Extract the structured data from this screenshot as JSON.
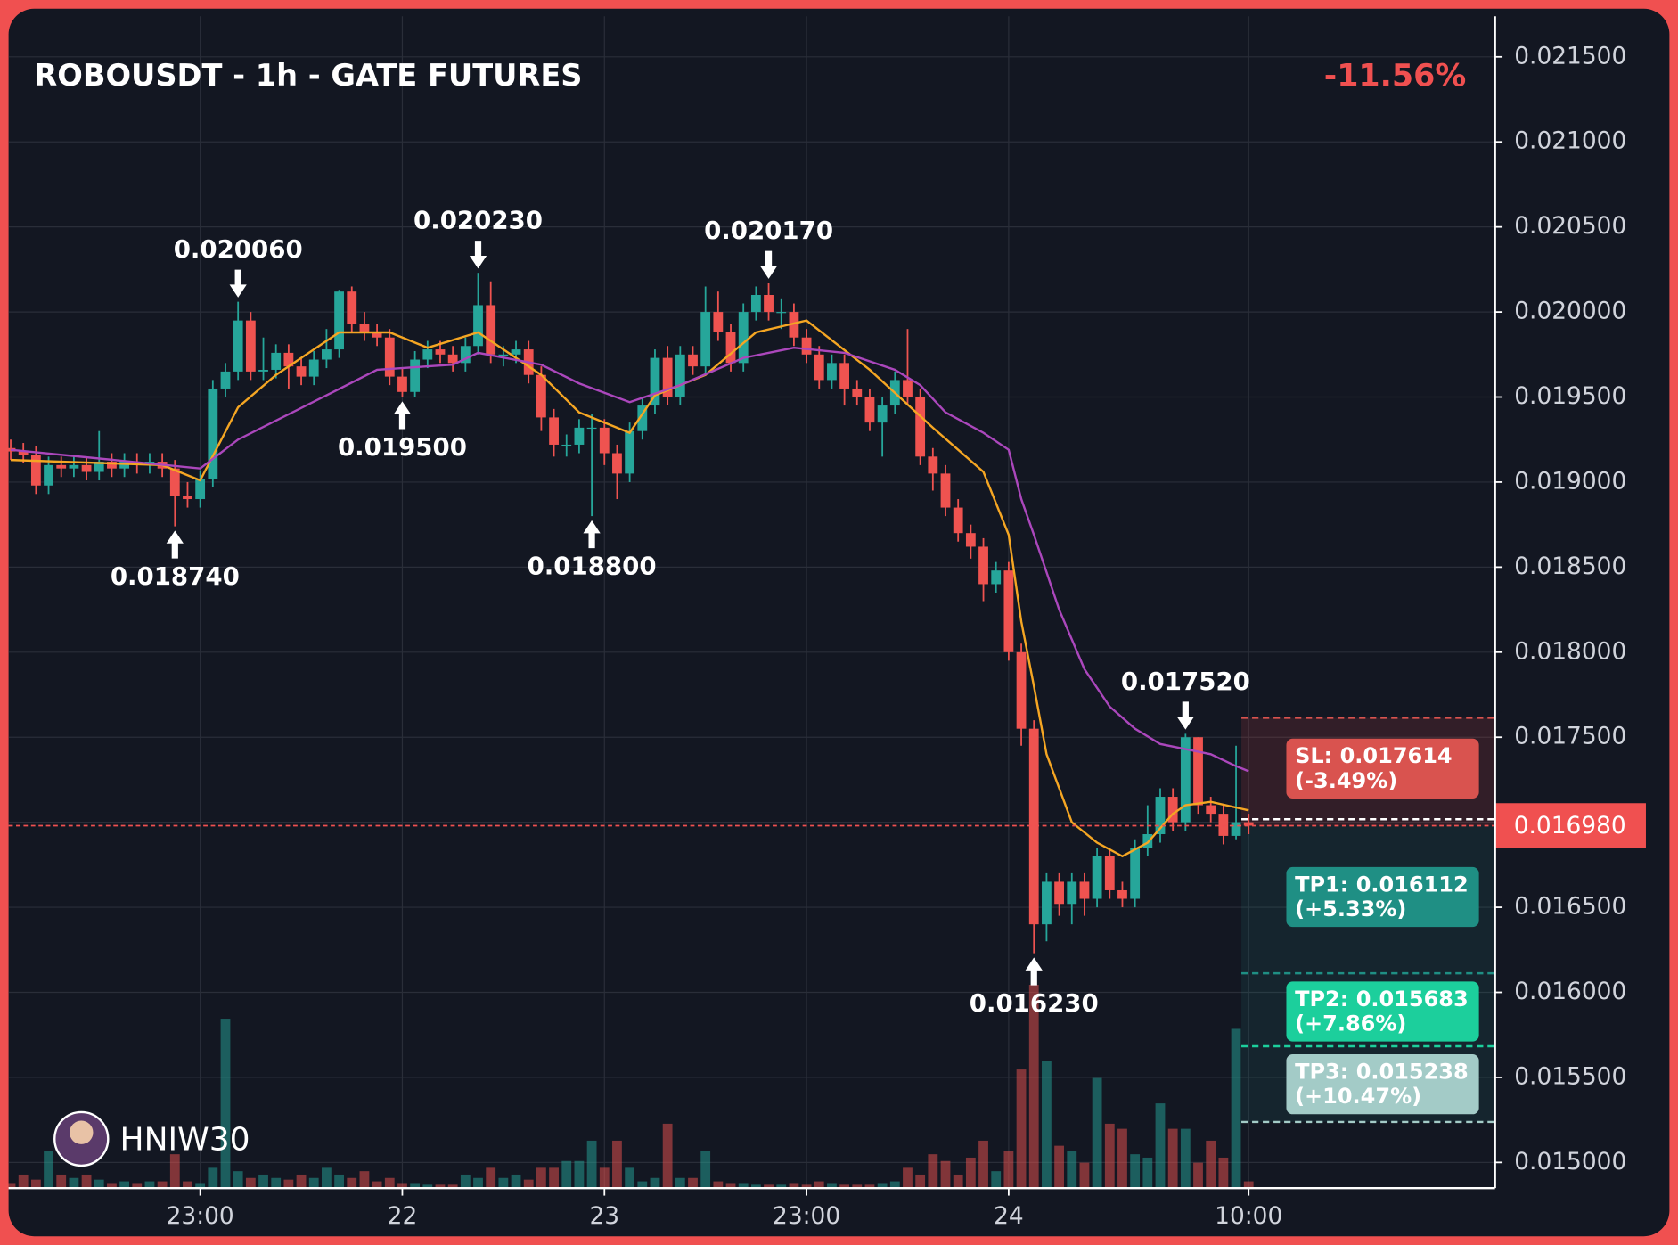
{
  "chart_data": {
    "type": "candlestick",
    "title": "ROBOUSDT - 1h - GATE FUTURES",
    "change": "-11.56%",
    "watermark": "HNIW30",
    "up_color": "#26a69a",
    "down_color": "#ef5350",
    "grid": true,
    "xlim": [
      -0.17,
      117.5
    ],
    "ylim": [
      0.014849,
      0.021739
    ],
    "yticks": [
      {
        "value": 0.0215,
        "label": "0.021500"
      },
      {
        "value": 0.021,
        "label": "0.021000"
      },
      {
        "value": 0.0205,
        "label": "0.020500"
      },
      {
        "value": 0.02,
        "label": "0.020000"
      },
      {
        "value": 0.0195,
        "label": "0.019500"
      },
      {
        "value": 0.019,
        "label": "0.019000"
      },
      {
        "value": 0.0185,
        "label": "0.018500"
      },
      {
        "value": 0.018,
        "label": "0.018000"
      },
      {
        "value": 0.0175,
        "label": "0.017500"
      },
      {
        "value": 0.017,
        "label": "0.017000"
      },
      {
        "value": 0.0165,
        "label": "0.016500"
      },
      {
        "value": 0.016,
        "label": "0.016000"
      },
      {
        "value": 0.0155,
        "label": "0.015500"
      },
      {
        "value": 0.015,
        "label": "0.015000"
      }
    ],
    "xticks": [
      {
        "value": 15,
        "label": "23:00"
      },
      {
        "value": 31,
        "label": "22"
      },
      {
        "value": 47,
        "label": "23"
      },
      {
        "value": 63,
        "label": "23:00"
      },
      {
        "value": 79,
        "label": "24"
      },
      {
        "value": 98,
        "label": "10:00"
      }
    ],
    "open": [
      0.0192,
      0.01918,
      0.01916,
      0.01898,
      0.0191,
      0.01908,
      0.0191,
      0.01906,
      0.01912,
      0.01908,
      0.01912,
      0.0191,
      0.01912,
      0.01908,
      0.01892,
      0.0189,
      0.01902,
      0.01955,
      0.01965,
      0.01995,
      0.01965,
      0.01966,
      0.01976,
      0.01968,
      0.01962,
      0.01972,
      0.01978,
      0.02012,
      0.01993,
      0.01988,
      0.01985,
      0.01962,
      0.01953,
      0.01972,
      0.01978,
      0.01975,
      0.0197,
      0.0198,
      0.02004,
      0.01975,
      0.01975,
      0.01978,
      0.01963,
      0.01938,
      0.01922,
      0.01922,
      0.01932,
      0.01932,
      0.01917,
      0.01905,
      0.0193,
      0.01945,
      0.01973,
      0.0195,
      0.01975,
      0.01968,
      0.02,
      0.01988,
      0.0197,
      0.02,
      0.0201,
      0.02,
      0.02,
      0.01985,
      0.01975,
      0.0196,
      0.0197,
      0.01955,
      0.0195,
      0.01935,
      0.01945,
      0.0196,
      0.0195,
      0.01915,
      0.01905,
      0.01885,
      0.0187,
      0.01862,
      0.0184,
      0.01848,
      0.018,
      0.01755,
      0.0164,
      0.01665,
      0.01652,
      0.01665,
      0.01655,
      0.0168,
      0.0166,
      0.01655,
      0.01685,
      0.01693,
      0.01715,
      0.017,
      0.0175,
      0.0171,
      0.01705,
      0.01692,
      0.017
    ],
    "high": [
      0.01925,
      0.01923,
      0.01921,
      0.01915,
      0.01915,
      0.01915,
      0.01915,
      0.0193,
      0.01917,
      0.01917,
      0.01917,
      0.01917,
      0.01917,
      0.01913,
      0.019,
      0.01907,
      0.0196,
      0.0197,
      0.02006,
      0.02,
      0.01985,
      0.01981,
      0.01981,
      0.01973,
      0.01977,
      0.0199,
      0.02013,
      0.02015,
      0.02,
      0.01993,
      0.0199,
      0.01967,
      0.01977,
      0.01983,
      0.01983,
      0.0198,
      0.01985,
      0.02023,
      0.02018,
      0.0198,
      0.01983,
      0.01983,
      0.01968,
      0.01943,
      0.01928,
      0.01937,
      0.0194,
      0.01937,
      0.01922,
      0.01935,
      0.0195,
      0.01978,
      0.0198,
      0.0198,
      0.0198,
      0.02015,
      0.02012,
      0.01993,
      0.02005,
      0.02015,
      0.02017,
      0.02008,
      0.02005,
      0.0199,
      0.0198,
      0.01975,
      0.01975,
      0.0196,
      0.01955,
      0.0195,
      0.01965,
      0.0199,
      0.01955,
      0.0192,
      0.0191,
      0.0189,
      0.01875,
      0.01867,
      0.01853,
      0.01853,
      0.01805,
      0.0176,
      0.0167,
      0.0167,
      0.0167,
      0.0167,
      0.01685,
      0.01685,
      0.01665,
      0.0169,
      0.0171,
      0.0172,
      0.0172,
      0.01752,
      0.0175,
      0.01715,
      0.0171,
      0.01745,
      0.01705
    ],
    "low": [
      0.01913,
      0.01911,
      0.01893,
      0.01893,
      0.01903,
      0.01903,
      0.01901,
      0.01901,
      0.01903,
      0.01903,
      0.01905,
      0.01905,
      0.01903,
      0.01874,
      0.01885,
      0.01885,
      0.01897,
      0.0195,
      0.0196,
      0.0196,
      0.0196,
      0.01961,
      0.01955,
      0.01957,
      0.01957,
      0.01967,
      0.01973,
      0.01988,
      0.01983,
      0.0198,
      0.01957,
      0.0195,
      0.0195,
      0.01967,
      0.0197,
      0.01965,
      0.01965,
      0.01975,
      0.0197,
      0.01968,
      0.0197,
      0.01958,
      0.0193,
      0.01915,
      0.01915,
      0.01917,
      0.0188,
      0.0191,
      0.0189,
      0.019,
      0.01925,
      0.0194,
      0.01945,
      0.01945,
      0.01963,
      0.01963,
      0.01983,
      0.01965,
      0.01965,
      0.01995,
      0.01995,
      0.0199,
      0.0198,
      0.0197,
      0.01955,
      0.01955,
      0.01945,
      0.01945,
      0.0193,
      0.01915,
      0.0194,
      0.01945,
      0.0191,
      0.01895,
      0.0188,
      0.01865,
      0.01855,
      0.0183,
      0.01835,
      0.01795,
      0.01745,
      0.01623,
      0.0163,
      0.01645,
      0.0164,
      0.01645,
      0.0165,
      0.01655,
      0.0165,
      0.0165,
      0.0168,
      0.01688,
      0.01695,
      0.01695,
      0.01705,
      0.017,
      0.01687,
      0.0169,
      0.01693
    ],
    "close": [
      0.01918,
      0.01916,
      0.01898,
      0.0191,
      0.01908,
      0.0191,
      0.01906,
      0.01912,
      0.01908,
      0.01912,
      0.0191,
      0.01912,
      0.01908,
      0.01892,
      0.0189,
      0.01902,
      0.01955,
      0.01965,
      0.01995,
      0.01965,
      0.01966,
      0.01976,
      0.01968,
      0.01962,
      0.01972,
      0.01978,
      0.02012,
      0.01993,
      0.01988,
      0.01985,
      0.01962,
      0.01953,
      0.01972,
      0.01978,
      0.01975,
      0.0197,
      0.0198,
      0.02004,
      0.01975,
      0.01975,
      0.01978,
      0.01963,
      0.01938,
      0.01922,
      0.01922,
      0.01932,
      0.01932,
      0.01917,
      0.01905,
      0.0193,
      0.01945,
      0.01973,
      0.0195,
      0.01975,
      0.01968,
      0.02,
      0.01988,
      0.0197,
      0.02,
      0.0201,
      0.02,
      0.02,
      0.01985,
      0.01975,
      0.0196,
      0.0197,
      0.01955,
      0.0195,
      0.01935,
      0.01945,
      0.0196,
      0.0195,
      0.01915,
      0.01905,
      0.01885,
      0.0187,
      0.01862,
      0.0184,
      0.01848,
      0.018,
      0.01755,
      0.0164,
      0.01665,
      0.01652,
      0.01665,
      0.01655,
      0.0168,
      0.0166,
      0.01655,
      0.01685,
      0.01693,
      0.01715,
      0.017,
      0.0175,
      0.0171,
      0.01705,
      0.01692,
      0.017,
      0.01698
    ],
    "volume": [
      3,
      8,
      5,
      22,
      8,
      6,
      8,
      5,
      3,
      4,
      3,
      4,
      4,
      20,
      4,
      3,
      12,
      100,
      10,
      6,
      8,
      6,
      5,
      8,
      6,
      12,
      8,
      6,
      10,
      4,
      6,
      3,
      3,
      2,
      2,
      2,
      8,
      6,
      12,
      6,
      8,
      5,
      12,
      12,
      16,
      16,
      28,
      12,
      28,
      12,
      4,
      6,
      38,
      6,
      6,
      22,
      4,
      3,
      3,
      2,
      2,
      2,
      3,
      2,
      4,
      3,
      2,
      2,
      2,
      3,
      4,
      12,
      8,
      20,
      16,
      8,
      18,
      28,
      10,
      22,
      70,
      120,
      75,
      25,
      22,
      15,
      65,
      38,
      35,
      20,
      18,
      50,
      35,
      35,
      15,
      28,
      18,
      94,
      4
    ],
    "moving_averages": [
      {
        "color": "#f5a623",
        "x": [
          0,
          12,
          15,
          18,
          21,
          26,
          30,
          33,
          37,
          42,
          45,
          49,
          51,
          55,
          59,
          63,
          68,
          73,
          77,
          79,
          80,
          81,
          82,
          84,
          86,
          88,
          90,
          92,
          93,
          95,
          98
        ],
        "values": [
          0.01913,
          0.0191,
          0.01901,
          0.01944,
          0.01963,
          0.01988,
          0.01988,
          0.01979,
          0.01988,
          0.01963,
          0.01941,
          0.01929,
          0.01951,
          0.01963,
          0.01988,
          0.01995,
          0.01966,
          0.01932,
          0.01906,
          0.01869,
          0.01818,
          0.0178,
          0.0174,
          0.017,
          0.01688,
          0.0168,
          0.01688,
          0.01705,
          0.0171,
          0.01712,
          0.01707
        ]
      },
      {
        "color": "#ab47bc",
        "x": [
          0,
          15,
          18,
          25,
          29,
          35,
          37,
          42,
          45,
          49,
          53,
          58,
          62,
          66,
          70,
          72,
          74,
          77,
          79,
          80,
          81,
          83,
          85,
          87,
          89,
          91,
          93,
          95,
          97,
          98
        ],
        "values": [
          0.01919,
          0.01908,
          0.01925,
          0.01951,
          0.01966,
          0.01969,
          0.01976,
          0.01969,
          0.01958,
          0.01947,
          0.01957,
          0.01973,
          0.01979,
          0.01976,
          0.01966,
          0.01957,
          0.01941,
          0.01929,
          0.01919,
          0.0189,
          0.01869,
          0.01825,
          0.0179,
          0.01768,
          0.01755,
          0.01746,
          0.01743,
          0.0174,
          0.01733,
          0.0173
        ]
      }
    ],
    "annotations": [
      {
        "value": 0.02006,
        "label": "0.020060",
        "index": 18,
        "position": "above"
      },
      {
        "value": 0.01874,
        "label": "0.018740",
        "index": 13,
        "position": "below"
      },
      {
        "value": 0.02023,
        "label": "0.020230",
        "index": 37,
        "position": "above"
      },
      {
        "value": 0.0195,
        "label": "0.019500",
        "index": 31,
        "position": "below"
      },
      {
        "value": 0.0188,
        "label": "0.018800",
        "index": 46,
        "position": "below"
      },
      {
        "value": 0.02017,
        "label": "0.020170",
        "index": 60,
        "position": "above"
      },
      {
        "value": 0.01752,
        "label": "0.017520",
        "index": 93,
        "position": "above"
      },
      {
        "value": 0.01623,
        "label": "0.016230",
        "index": 81,
        "position": "below"
      }
    ],
    "last_price": {
      "value": 0.01698,
      "label": "0.016980",
      "color": "#f05050"
    },
    "levels": [
      {
        "value": 0.017614,
        "label": "SL: 0.017614",
        "change": "(-3.49%)",
        "color": "#d9534f"
      },
      {
        "value": 0.016112,
        "label": "TP1: 0.016112",
        "change": "(+5.33%)",
        "color": "#1f8f84"
      },
      {
        "value": 0.015683,
        "label": "TP2: 0.015683",
        "change": "(+7.86%)",
        "color": "#1ccf9c"
      },
      {
        "value": 0.015238,
        "label": "TP3: 0.015238",
        "change": "(+10.47%)",
        "color": "#a3cbc7"
      }
    ]
  }
}
